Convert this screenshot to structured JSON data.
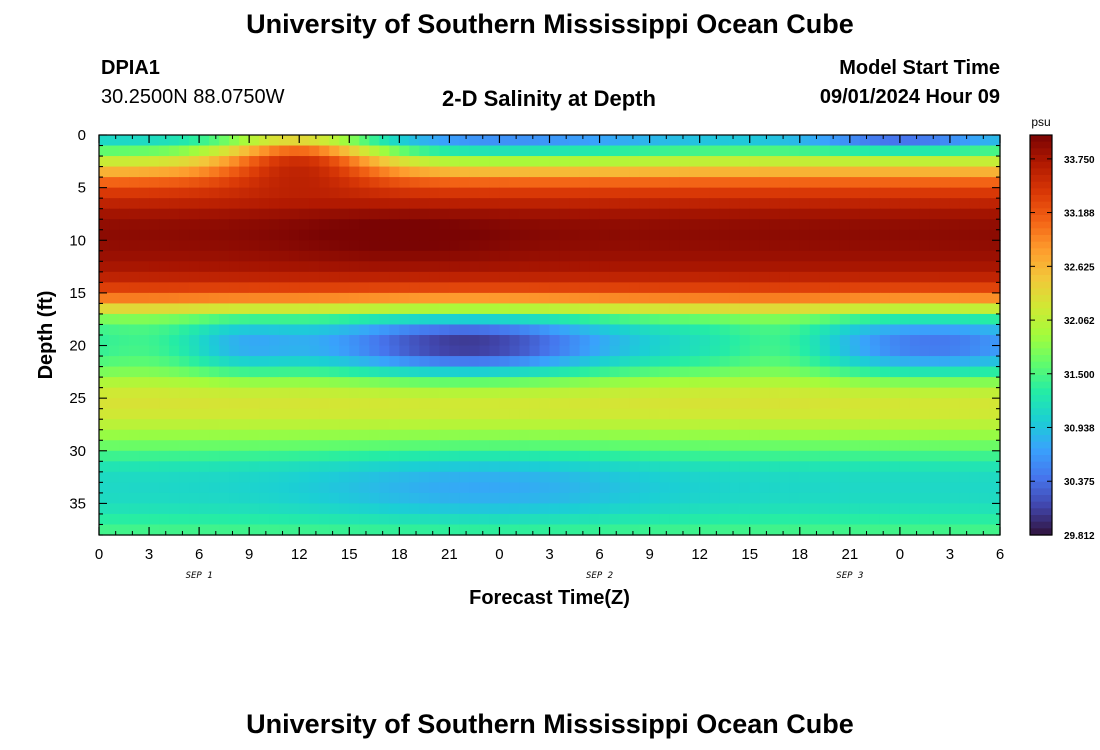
{
  "page": {
    "title": "University of Southern Mississippi Ocean Cube",
    "station_id": "DPIA1",
    "coordinates": "30.2500N  88.0750W",
    "plot_title": "2-D Salinity at Depth",
    "model_start_label": "Model Start Time",
    "model_start_value": "09/01/2024 Hour 09",
    "footer_title": "University of Southern Mississippi Ocean Cube"
  },
  "colors": {
    "scale": [
      "#30123b",
      "#4145ab",
      "#4675ed",
      "#39a2fc",
      "#1bcfd4",
      "#24eca6",
      "#61fc6c",
      "#a4fc3b",
      "#d1e834",
      "#f3c63a",
      "#fe9b2d",
      "#f36315",
      "#d93806",
      "#b11901",
      "#7a0403"
    ]
  },
  "chart_data": {
    "type": "heatmap",
    "xlabel": "Forecast Time(Z)",
    "ylabel": "Depth (ft)",
    "x_tick_labels": [
      "0",
      "3",
      "6",
      "9",
      "12",
      "15",
      "18",
      "21",
      "0",
      "3",
      "6",
      "9",
      "12",
      "15",
      "18",
      "21",
      "0",
      "3",
      "6"
    ],
    "date_labels": [
      {
        "text": "SEP 1",
        "tick_index": 2
      },
      {
        "text": "SEP 2",
        "tick_index": 10
      },
      {
        "text": "SEP 3",
        "tick_index": 15
      }
    ],
    "x_range_hours": [
      0,
      54
    ],
    "ylim": [
      0,
      38
    ],
    "y_tick_labels": [
      0,
      5,
      10,
      15,
      20,
      25,
      30,
      35
    ],
    "colorbar": {
      "unit": "psu",
      "min": 29.812,
      "max": 34.0,
      "labels": [
        "33.750",
        "33.188",
        "32.625",
        "32.062",
        "31.500",
        "30.938",
        "30.375",
        "29.812"
      ]
    },
    "depth_profile_psu": [
      {
        "depth": 0,
        "psu": 30.9
      },
      {
        "depth": 1,
        "psu": 31.3
      },
      {
        "depth": 2,
        "psu": 31.9
      },
      {
        "depth": 3,
        "psu": 32.4
      },
      {
        "depth": 4,
        "psu": 32.9
      },
      {
        "depth": 5,
        "psu": 33.3
      },
      {
        "depth": 6,
        "psu": 33.5
      },
      {
        "depth": 7,
        "psu": 33.7
      },
      {
        "depth": 8,
        "psu": 33.85
      },
      {
        "depth": 9,
        "psu": 33.9
      },
      {
        "depth": 10,
        "psu": 33.9
      },
      {
        "depth": 11,
        "psu": 33.85
      },
      {
        "depth": 12,
        "psu": 33.8
      },
      {
        "depth": 13,
        "psu": 33.7
      },
      {
        "depth": 14,
        "psu": 33.5
      },
      {
        "depth": 15,
        "psu": 33.2
      },
      {
        "depth": 16,
        "psu": 32.7
      },
      {
        "depth": 17,
        "psu": 31.9
      },
      {
        "depth": 18,
        "psu": 31.4
      },
      {
        "depth": 19,
        "psu": 31.25
      },
      {
        "depth": 20,
        "psu": 31.2
      },
      {
        "depth": 21,
        "psu": 31.3
      },
      {
        "depth": 22,
        "psu": 31.5
      },
      {
        "depth": 23,
        "psu": 31.8
      },
      {
        "depth": 24,
        "psu": 32.1
      },
      {
        "depth": 25,
        "psu": 32.25
      },
      {
        "depth": 26,
        "psu": 32.25
      },
      {
        "depth": 27,
        "psu": 32.15
      },
      {
        "depth": 28,
        "psu": 31.95
      },
      {
        "depth": 29,
        "psu": 31.75
      },
      {
        "depth": 30,
        "psu": 31.55
      },
      {
        "depth": 31,
        "psu": 31.3
      },
      {
        "depth": 32,
        "psu": 31.15
      },
      {
        "depth": 33,
        "psu": 31.1
      },
      {
        "depth": 34,
        "psu": 31.1
      },
      {
        "depth": 35,
        "psu": 31.15
      },
      {
        "depth": 36,
        "psu": 31.25
      },
      {
        "depth": 37,
        "psu": 31.4
      },
      {
        "depth": 38,
        "psu": 31.5
      }
    ],
    "features": [
      {
        "name": "surface-tongue",
        "hour": 12,
        "depth": 1.5,
        "dh": 3.5,
        "dd": 2.0,
        "dpsu": 1.6
      },
      {
        "name": "surface-fresh-1",
        "hour": 24,
        "depth": 0.5,
        "dh": 8,
        "dd": 1.5,
        "dpsu": -0.5
      },
      {
        "name": "surface-fresh-2",
        "hour": 48,
        "depth": 0.3,
        "dh": 4,
        "dd": 1.0,
        "dpsu": -0.7
      },
      {
        "name": "low-core-1",
        "hour": 22,
        "depth": 20,
        "dh": 6,
        "dd": 2.2,
        "dpsu": -1.2
      },
      {
        "name": "low-core-2",
        "hour": 50,
        "depth": 20,
        "dh": 5,
        "dd": 2.2,
        "dpsu": -0.8
      },
      {
        "name": "low-core-3",
        "hour": 8.5,
        "depth": 20,
        "dh": 2.5,
        "dd": 2.0,
        "dpsu": -0.4
      },
      {
        "name": "mid-rise-1",
        "hour": 3,
        "depth": 20,
        "dh": 3,
        "dd": 2.0,
        "dpsu": 0.25
      },
      {
        "name": "mid-rise-2",
        "hour": 41,
        "depth": 20,
        "dh": 2.5,
        "dd": 2.0,
        "dpsu": 0.35
      },
      {
        "name": "deep-low",
        "hour": 23,
        "depth": 33.5,
        "dh": 7,
        "dd": 2.5,
        "dpsu": -0.35
      },
      {
        "name": "core-max",
        "hour": 18,
        "depth": 9.5,
        "dh": 5,
        "dd": 2.0,
        "dpsu": 0.15
      }
    ],
    "grid": false
  }
}
